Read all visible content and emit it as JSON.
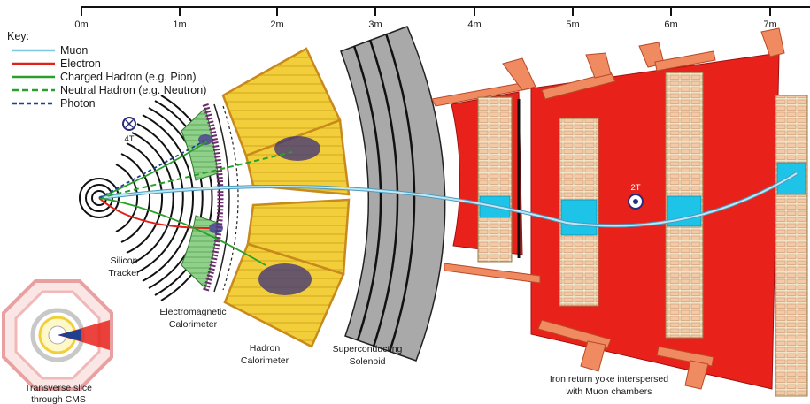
{
  "ruler": {
    "ticks": [
      "0m",
      "1m",
      "2m",
      "3m",
      "4m",
      "5m",
      "6m",
      "7m"
    ]
  },
  "key": {
    "title": "Key:",
    "entries": [
      {
        "label": "Muon",
        "color": "#7ec8e3",
        "style": "solid"
      },
      {
        "label": "Electron",
        "color": "#e0201b",
        "style": "solid"
      },
      {
        "label": "Charged Hadron (e.g. Pion)",
        "color": "#2aa02a",
        "style": "solid"
      },
      {
        "label": "Neutral Hadron (e.g. Neutron)",
        "color": "#2aa02a",
        "style": "dashed"
      },
      {
        "label": "Photon",
        "color": "#1f3f8f",
        "style": "dashed"
      }
    ]
  },
  "field_labels": {
    "inner": "4T",
    "outer": "2T"
  },
  "labels": {
    "tracker_line1": "Silicon",
    "tracker_line2": "Tracker",
    "ecal_line1": "Electromagnetic",
    "ecal_line2": "Calorimeter",
    "hcal_line1": "Hadron",
    "hcal_line2": "Calorimeter",
    "solenoid_line1": "Superconducting",
    "solenoid_line2": "Solenoid",
    "yoke_line1": "Iron return yoke interspersed",
    "yoke_line2": "with Muon chambers",
    "slice_line1": "Transverse slice",
    "slice_line2": "through CMS"
  },
  "colors": {
    "ecal": "#8fd18a",
    "hcal": "#f2cf3a",
    "hcal_border": "#c98a1c",
    "solenoid": "#a9a9a9",
    "yoke": "#e8221b",
    "muon_chamber": "#efe3c8",
    "muon_cell": "#1ec3e8",
    "flange": "#f08a60"
  }
}
